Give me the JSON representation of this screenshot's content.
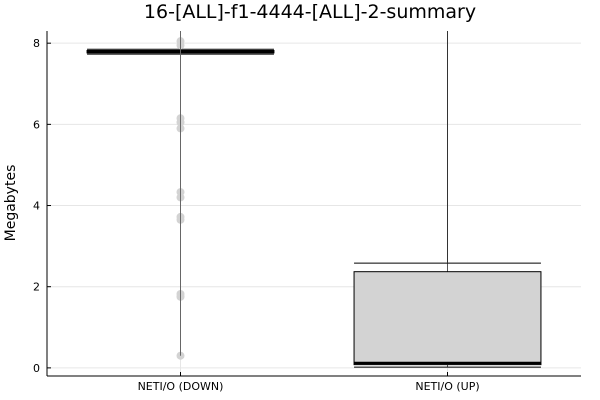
{
  "chart_data": {
    "type": "boxplot",
    "title": "16-[ALL]-f1-4444-[ALL]-2-summary",
    "xlabel": "",
    "ylabel": "Megabytes",
    "categories": [
      "NETI/O (DOWN)",
      "NETI/O (UP)"
    ],
    "ylim": [
      -0.2,
      8.3
    ],
    "yticks": [
      0,
      2,
      4,
      6,
      8
    ],
    "grid": true,
    "legend": "none",
    "box_fill": "#d3d3d3",
    "outlier_color": "#d3d3d3",
    "series": [
      {
        "category": "NETI/O (DOWN)",
        "min": 7.73,
        "q1": 7.76,
        "median": 7.79,
        "q3": 7.82,
        "max": 7.85,
        "outliers": [
          0.3,
          1.75,
          1.82,
          3.65,
          3.72,
          4.2,
          4.33,
          5.9,
          6.05,
          6.15,
          7.95,
          8.05
        ]
      },
      {
        "category": "NETI/O (UP)",
        "min": 0.02,
        "q1": 0.08,
        "median": 0.12,
        "q3": 2.37,
        "max": 2.58,
        "outliers": []
      }
    ]
  }
}
